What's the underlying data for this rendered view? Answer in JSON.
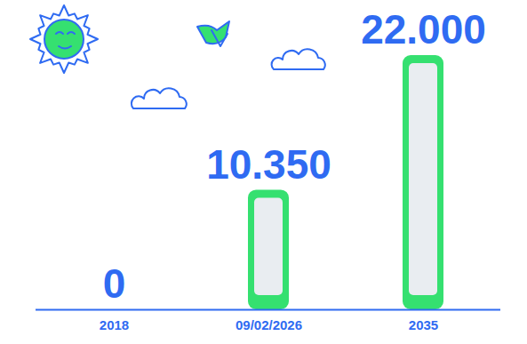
{
  "chart_data": {
    "type": "bar",
    "categories": [
      "2018",
      "09/02/2026",
      "2035"
    ],
    "values": [
      0,
      10350,
      22000
    ],
    "value_labels": [
      "0",
      "10.350",
      "22.000"
    ],
    "data_labels": true,
    "color": "#35e070",
    "ylim": [
      0,
      22000
    ],
    "tick_labels": "x"
  }
}
